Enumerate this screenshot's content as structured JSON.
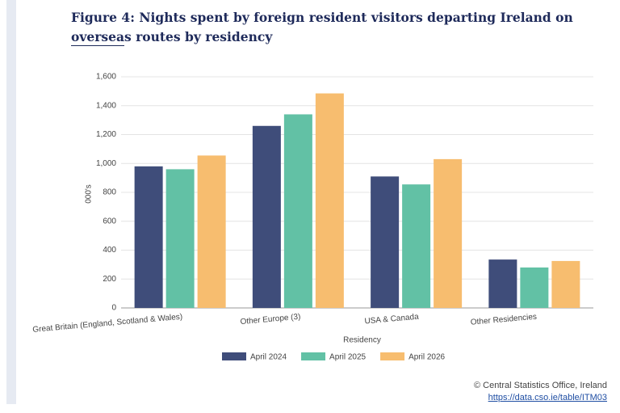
{
  "title": "Figure 4: Nights spent by foreign resident visitors departing Ireland on overseas routes by residency",
  "chart_data": {
    "type": "bar",
    "categories": [
      "Great Britain (England, Scotland & Wales)",
      "Other Europe (3)",
      "USA & Canada",
      "Other Residencies"
    ],
    "series": [
      {
        "name": "April 2024",
        "color": "#3f4d7a",
        "values": [
          980,
          1260,
          910,
          335
        ]
      },
      {
        "name": "April 2025",
        "color": "#62c1a5",
        "values": [
          960,
          1340,
          855,
          280
        ]
      },
      {
        "name": "April 2026",
        "color": "#f7bd6f",
        "values": [
          1055,
          1485,
          1030,
          325
        ]
      }
    ],
    "x_label": "Residency",
    "y_label": "000's",
    "ylim": [
      0,
      1600
    ],
    "yticks": [
      0,
      200,
      400,
      600,
      800,
      {
        "value": 1000,
        "label": "1,000"
      },
      {
        "value": 1200,
        "label": "1,200"
      },
      {
        "value": 1400,
        "label": "1,400"
      },
      {
        "value": 1600,
        "label": "1,600"
      }
    ],
    "grid": true,
    "legend": "bottom"
  },
  "footer": {
    "source": "© Central Statistics Office, Ireland",
    "link": "https://data.cso.ie/table/ITM03"
  }
}
